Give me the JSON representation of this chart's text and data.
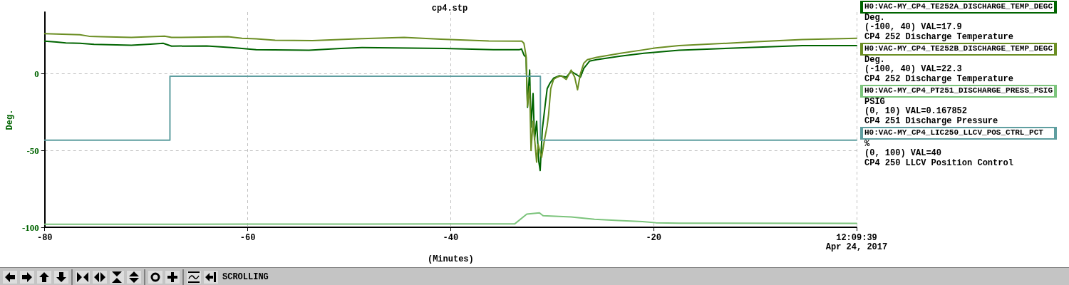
{
  "chart_data": {
    "type": "line",
    "title": "cp4.stp",
    "xlabel": "(Minutes)",
    "ylabel": "Deg.",
    "xlim": [
      -80,
      0
    ],
    "xticks": [
      -80,
      -60,
      -40,
      -20,
      {
        "value": 0,
        "label": "12:09:39\nApr 24, 2017"
      }
    ],
    "ylim": [
      -100,
      40
    ],
    "yticks": [
      -100,
      -50,
      0
    ],
    "grid": true,
    "legend": "right",
    "marker": "none",
    "line_style": "solid",
    "annotations": [
      "Deg.",
      "(-100, 40) VAL=17.9",
      "CP4 252 Discharge Temperature",
      "Deg.",
      "(-100, 40) VAL=22.3",
      "CP4 252 Discharge Temperature",
      "PSIG",
      "(0, 10) VAL=0.167852",
      "CP4 251 Discharge Pressure",
      "%",
      "(0, 100) VAL=40",
      "CP4 250 LLCV Position Control",
      "SCROLLING"
    ],
    "series": [
      {
        "name": "H0:VAC-MY_CP4_TE252A_DISCHARGE_TEMP_DEGC",
        "color": "#006400",
        "x": [
          -80,
          -78.82,
          -77.92,
          -76.53,
          -75.14,
          -71.46,
          -69.58,
          -68.33,
          -67.5,
          -64.03,
          -61.6,
          -60.56,
          -59.17,
          -53.96,
          -50.83,
          -48.75,
          -40.65,
          -35.8,
          -33.26,
          -33.01,
          -32.78,
          -32.57,
          -32.43,
          -32.22,
          -32.08,
          -31.88,
          -31.74,
          -31.53,
          -31.32,
          -31.18,
          -30.97,
          -30.69,
          -30.49,
          -30.21,
          -29.86,
          -29.31,
          -28.61,
          -28.13,
          -27.71,
          -27.22,
          -26.88,
          -26.32,
          -25.63,
          -23.26,
          -20.97,
          -17.5,
          -10.21,
          -5.35,
          0
        ],
        "values": [
          21.1,
          20.5,
          20.0,
          19.7,
          19.0,
          18.5,
          19.2,
          19.7,
          17.9,
          18.0,
          17.0,
          16.4,
          15.6,
          15.2,
          16.4,
          17.0,
          16.4,
          15.5,
          15.5,
          16.0,
          12.1,
          10.6,
          -21.9,
          2.3,
          -34.8,
          -12.9,
          -43.0,
          -31.0,
          -57.0,
          -63.0,
          -36.4,
          -20.5,
          -9.8,
          -6.1,
          -3.0,
          -1.4,
          -2.3,
          1.5,
          -0.2,
          -2.3,
          3.4,
          8.1,
          9.1,
          11.4,
          13.2,
          15.2,
          17.1,
          18.2,
          18.2
        ]
      },
      {
        "name": "H0:VAC-MY_CP4_TE252B_DISCHARGE_TEMP_DEGC",
        "color": "#6b8e23",
        "x": [
          -80,
          -76.53,
          -75.63,
          -74.44,
          -71.46,
          -68.19,
          -67.5,
          -61.94,
          -60.56,
          -59.17,
          -57.29,
          -53.61,
          -48.75,
          -44.58,
          -40.97,
          -36.25,
          -32.99,
          -32.78,
          -32.57,
          -32.43,
          -32.22,
          -32.08,
          -31.88,
          -31.53,
          -31.39,
          -31.04,
          -30.76,
          -30.49,
          -30.35,
          -30.14,
          -29.86,
          -29.51,
          -29.1,
          -28.61,
          -28.13,
          -27.78,
          -27.5,
          -27.22,
          -26.88,
          -26.53,
          -25.63,
          -23.26,
          -20.97,
          -19.79,
          -17.5,
          -10.21,
          -5.35,
          0
        ],
        "values": [
          26.0,
          25.3,
          24.3,
          24.0,
          23.5,
          24.4,
          23.5,
          24.0,
          23.0,
          22.6,
          21.7,
          21.5,
          22.7,
          23.5,
          22.4,
          21.2,
          21.1,
          19.7,
          11.4,
          -21.2,
          -8.3,
          -50.0,
          -31.0,
          -57.6,
          -46.0,
          -54.5,
          -43.2,
          -34.0,
          -26.5,
          -9.8,
          -3.8,
          -2.3,
          -1.4,
          -3.8,
          2.3,
          -2.3,
          -10.5,
          -0.2,
          6.8,
          9.1,
          10.6,
          13.2,
          15.5,
          16.7,
          18.2,
          20.6,
          22.2,
          23.0
        ]
      },
      {
        "name": "H0:VAC-MY_CP4_PT251_DISCHARGE_PRESS_PSIG",
        "color": "#7cc47c",
        "x": [
          -80,
          -60,
          -40,
          -33.68,
          -32.5,
          -31.25,
          -30.9,
          -28.13,
          -25.83,
          -23.47,
          -21.11,
          -19.79,
          -17.5,
          0
        ],
        "values": [
          -98.0,
          -97.9,
          -97.8,
          -97.7,
          -91.4,
          -90.6,
          -92.4,
          -93.2,
          -94.7,
          -95.5,
          -96.2,
          -97.0,
          -97.3,
          -97.4
        ]
      },
      {
        "name": "H0:VAC-MY_CP4_LIC250_LLCV_POS_CTRL_PCT",
        "color": "#5f9ea0",
        "x": [
          -80,
          -67.66,
          -67.66,
          -31.16,
          -31.16,
          0
        ],
        "values": [
          -43.3,
          -43.3,
          -1.7,
          -1.7,
          -43.3,
          -43.3
        ]
      }
    ]
  }
}
